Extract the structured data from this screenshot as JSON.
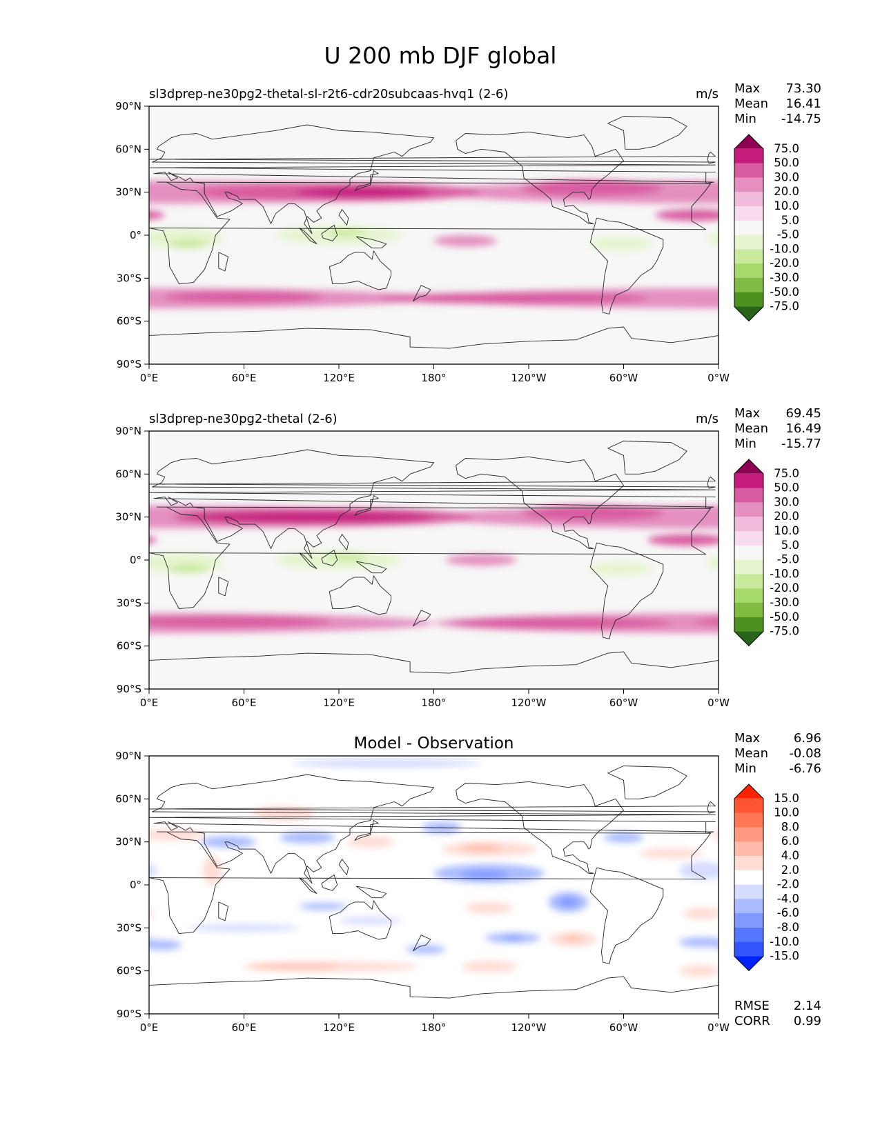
{
  "chart_data": {
    "type": "contour-map",
    "suptitle": "U 200 mb DJF global",
    "x_ticks": [
      "0°E",
      "60°E",
      "120°E",
      "180°",
      "120°W",
      "60°W",
      "0°W"
    ],
    "y_ticks": [
      "90°N",
      "60°N",
      "30°N",
      "0°",
      "30°S",
      "60°S",
      "90°S"
    ],
    "panels": [
      {
        "left_title": "sl3dprep-ne30pg2-thetal-sl-r2t6-cdr20subcaas-hvq1 (2-6)",
        "center_title": "",
        "units": "m/s",
        "stats": [
          {
            "label": "Max",
            "value": "73.30"
          },
          {
            "label": "Mean",
            "value": "16.41"
          },
          {
            "label": "Min",
            "value": "-14.75"
          }
        ],
        "levels": [
          "75.0",
          "50.0",
          "30.0",
          "20.0",
          "10.0",
          "5.0",
          "-5.0",
          "-10.0",
          "-20.0",
          "-30.0",
          "-50.0",
          "-75.0"
        ],
        "colors": [
          "#8e0152",
          "#c51b7d",
          "#d95ba0",
          "#e48fc0",
          "#f0bada",
          "#f8dbec",
          "#f7f7f7",
          "#e6f5d0",
          "#c9e99c",
          "#a6d96a",
          "#7fbc41",
          "#4d9221",
          "#276419"
        ],
        "features": [
          {
            "lon": 0,
            "lat": 30,
            "w": 360,
            "h": 16,
            "level": 3
          },
          {
            "lon": 0,
            "lat": -44,
            "w": 360,
            "h": 14,
            "level": 3
          },
          {
            "lon": 120,
            "lat": 30,
            "w": 180,
            "h": 13,
            "level": 2
          },
          {
            "lon": 135,
            "lat": 30,
            "w": 85,
            "h": 7,
            "level": 1
          },
          {
            "lon": 280,
            "lat": 33,
            "w": 90,
            "h": 11,
            "level": 2
          },
          {
            "lon": 345,
            "lat": 14,
            "w": 50,
            "h": 8,
            "level": 2
          },
          {
            "lon": 60,
            "lat": -43,
            "w": 100,
            "h": 8,
            "level": 2
          },
          {
            "lon": 230,
            "lat": -44,
            "w": 170,
            "h": 8,
            "level": 2
          },
          {
            "lon": 200,
            "lat": -4,
            "w": 40,
            "h": 8,
            "level": 3
          },
          {
            "lon": 20,
            "lat": -2,
            "w": 55,
            "h": 14,
            "level": 7
          },
          {
            "lon": 25,
            "lat": -6,
            "w": 25,
            "h": 6,
            "level": 8
          },
          {
            "lon": 120,
            "lat": 0,
            "w": 80,
            "h": 13,
            "level": 7
          },
          {
            "lon": 125,
            "lat": 2,
            "w": 25,
            "h": 5,
            "level": 8
          },
          {
            "lon": 298,
            "lat": -6,
            "w": 40,
            "h": 10,
            "level": 7
          }
        ]
      },
      {
        "left_title": "sl3dprep-ne30pg2-thetal (2-6)",
        "center_title": "",
        "units": "m/s",
        "stats": [
          {
            "label": "Max",
            "value": "69.45"
          },
          {
            "label": "Mean",
            "value": "16.49"
          },
          {
            "label": "Min",
            "value": "-15.77"
          }
        ],
        "levels": [
          "75.0",
          "50.0",
          "30.0",
          "20.0",
          "10.0",
          "5.0",
          "-5.0",
          "-10.0",
          "-20.0",
          "-30.0",
          "-50.0",
          "-75.0"
        ],
        "colors": [
          "#8e0152",
          "#c51b7d",
          "#d95ba0",
          "#e48fc0",
          "#f0bada",
          "#f8dbec",
          "#f7f7f7",
          "#e6f5d0",
          "#c9e99c",
          "#a6d96a",
          "#7fbc41",
          "#4d9221",
          "#276419"
        ],
        "features": [
          {
            "lon": 0,
            "lat": 30,
            "w": 360,
            "h": 16,
            "level": 3
          },
          {
            "lon": 0,
            "lat": -44,
            "w": 360,
            "h": 14,
            "level": 3
          },
          {
            "lon": 110,
            "lat": 30,
            "w": 190,
            "h": 13,
            "level": 2
          },
          {
            "lon": 100,
            "lat": 30,
            "w": 160,
            "h": 7,
            "level": 1
          },
          {
            "lon": 280,
            "lat": 33,
            "w": 90,
            "h": 11,
            "level": 2
          },
          {
            "lon": 340,
            "lat": 14,
            "w": 50,
            "h": 8,
            "level": 2
          },
          {
            "lon": 50,
            "lat": -43,
            "w": 130,
            "h": 8,
            "level": 2
          },
          {
            "lon": 260,
            "lat": -44,
            "w": 140,
            "h": 8,
            "level": 2
          },
          {
            "lon": 210,
            "lat": 0,
            "w": 45,
            "h": 8,
            "level": 3
          },
          {
            "lon": 20,
            "lat": -2,
            "w": 55,
            "h": 14,
            "level": 7
          },
          {
            "lon": 25,
            "lat": -6,
            "w": 25,
            "h": 6,
            "level": 8
          },
          {
            "lon": 120,
            "lat": 0,
            "w": 80,
            "h": 13,
            "level": 7
          },
          {
            "lon": 125,
            "lat": 2,
            "w": 25,
            "h": 5,
            "level": 8
          },
          {
            "lon": 298,
            "lat": -6,
            "w": 40,
            "h": 10,
            "level": 7
          }
        ]
      },
      {
        "left_title": "",
        "center_title": "Model - Observation",
        "units": "",
        "stats": [
          {
            "label": "Max",
            "value": "6.96"
          },
          {
            "label": "Mean",
            "value": "-0.08"
          },
          {
            "label": "Min",
            "value": "-6.76"
          }
        ],
        "levels": [
          "15.0",
          "10.0",
          "8.0",
          "6.0",
          "4.0",
          "2.0",
          "-2.0",
          "-4.0",
          "-6.0",
          "-8.0",
          "-10.0",
          "-15.0"
        ],
        "colors": [
          "#ff2200",
          "#ff5533",
          "#ff7755",
          "#ff9a80",
          "#ffbbaa",
          "#ffdcd4",
          "#ffffff",
          "#d4dcff",
          "#aabbff",
          "#8099ff",
          "#5577ff",
          "#3355ff",
          "#0022ff"
        ],
        "features": [
          {
            "lon": 140,
            "lat": 30,
            "w": 30,
            "h": 8,
            "level": 5
          },
          {
            "lon": 215,
            "lat": 25,
            "w": 60,
            "h": 10,
            "level": 5
          },
          {
            "lon": 210,
            "lat": 26,
            "w": 25,
            "h": 5,
            "level": 4
          },
          {
            "lon": 85,
            "lat": 50,
            "w": 40,
            "h": 10,
            "level": 5
          },
          {
            "lon": 15,
            "lat": 35,
            "w": 40,
            "h": 8,
            "level": 5
          },
          {
            "lon": 40,
            "lat": 10,
            "w": 12,
            "h": 20,
            "level": 5
          },
          {
            "lon": 330,
            "lat": 22,
            "w": 40,
            "h": 7,
            "level": 5
          },
          {
            "lon": 115,
            "lat": -57,
            "w": 110,
            "h": 7,
            "level": 5
          },
          {
            "lon": 90,
            "lat": -57,
            "w": 60,
            "h": 4,
            "level": 4
          },
          {
            "lon": 215,
            "lat": -16,
            "w": 30,
            "h": 8,
            "level": 5
          },
          {
            "lon": 268,
            "lat": -38,
            "w": 30,
            "h": 10,
            "level": 5
          },
          {
            "lon": 268,
            "lat": -37,
            "w": 12,
            "h": 4,
            "level": 4
          },
          {
            "lon": 215,
            "lat": -57,
            "w": 35,
            "h": 8,
            "level": 5
          },
          {
            "lon": 350,
            "lat": -20,
            "w": 25,
            "h": 8,
            "level": 5
          },
          {
            "lon": 348,
            "lat": -60,
            "w": 25,
            "h": 8,
            "level": 5
          },
          {
            "lon": 215,
            "lat": 8,
            "w": 70,
            "h": 13,
            "level": 8
          },
          {
            "lon": 212,
            "lat": 7,
            "w": 30,
            "h": 6,
            "level": 9
          },
          {
            "lon": 265,
            "lat": -12,
            "w": 25,
            "h": 14,
            "level": 8
          },
          {
            "lon": 265,
            "lat": -12,
            "w": 12,
            "h": 7,
            "level": 9
          },
          {
            "lon": 230,
            "lat": -37,
            "w": 35,
            "h": 7,
            "level": 8
          },
          {
            "lon": 230,
            "lat": -37,
            "w": 12,
            "h": 3,
            "level": 9
          },
          {
            "lon": 50,
            "lat": 30,
            "w": 35,
            "h": 8,
            "level": 8
          },
          {
            "lon": 100,
            "lat": 33,
            "w": 35,
            "h": 8,
            "level": 8
          },
          {
            "lon": 185,
            "lat": 40,
            "w": 25,
            "h": 8,
            "level": 8
          },
          {
            "lon": 300,
            "lat": 33,
            "w": 25,
            "h": 7,
            "level": 8
          },
          {
            "lon": 8,
            "lat": -42,
            "w": 25,
            "h": 7,
            "level": 8
          },
          {
            "lon": 350,
            "lat": -40,
            "w": 30,
            "h": 7,
            "level": 8
          },
          {
            "lon": 175,
            "lat": -45,
            "w": 25,
            "h": 6,
            "level": 8
          },
          {
            "lon": 110,
            "lat": -15,
            "w": 30,
            "h": 5,
            "level": 8
          },
          {
            "lon": 150,
            "lat": 85,
            "w": 120,
            "h": 6,
            "level": 7
          },
          {
            "lon": 350,
            "lat": 10,
            "w": 30,
            "h": 12,
            "level": 7
          },
          {
            "lon": 60,
            "lat": -30,
            "w": 70,
            "h": 5,
            "level": 7
          },
          {
            "lon": 140,
            "lat": -25,
            "w": 40,
            "h": 5,
            "level": 7
          }
        ]
      }
    ],
    "error_stats": [
      {
        "label": "RMSE",
        "value": "2.14"
      },
      {
        "label": "CORR",
        "value": "0.99"
      }
    ]
  }
}
